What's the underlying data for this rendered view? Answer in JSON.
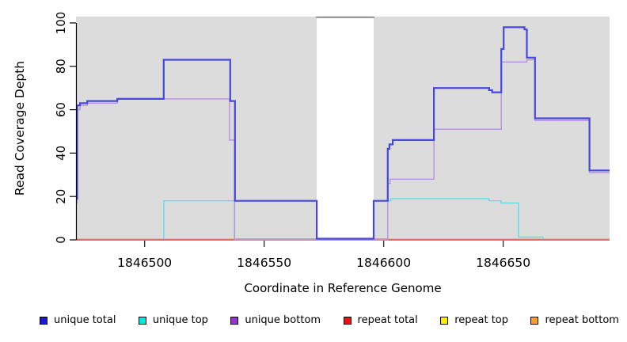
{
  "chart_data": {
    "type": "line",
    "title": "",
    "xlabel": "Coordinate in Reference Genome",
    "ylabel": "Read Coverage Depth",
    "xlim": [
      1846471.3,
      1846694.5
    ],
    "ylim": [
      0,
      102.9
    ],
    "x_ticks": [
      "1846500",
      "1846550",
      "1846600",
      "1846650"
    ],
    "x_tick_values": [
      1846500,
      1846550,
      1846600,
      1846650
    ],
    "y_ticks": [
      "0",
      "20",
      "40",
      "60",
      "80",
      "100"
    ],
    "y_tick_values": [
      0,
      20,
      40,
      60,
      80,
      100
    ],
    "grid": false,
    "plot_bg_color": "#dcdcdc",
    "gap_region": {
      "x1": 1846572,
      "x2": 1846595.8,
      "top_line_color": "#9a9a9a"
    },
    "series": [
      {
        "name": "repeat top",
        "color": "#ffee00",
        "width": 1.4,
        "points": [
          [
            1846471.3,
            0
          ],
          [
            1846694.5,
            0
          ]
        ]
      },
      {
        "name": "unique top",
        "color": "#5ce0e6",
        "width": 1.4,
        "points": [
          [
            1846471.3,
            0
          ],
          [
            1846508,
            18
          ],
          [
            1846537.7,
            0
          ],
          [
            1846595.8,
            18
          ],
          [
            1846603,
            19
          ],
          [
            1846644.1,
            18
          ],
          [
            1846649.1,
            17
          ],
          [
            1846656.4,
            1.3
          ],
          [
            1846666.6,
            0
          ],
          [
            1846694.5,
            0
          ]
        ]
      },
      {
        "name": "repeat bottom",
        "color": "#ff9a28",
        "width": 1.6,
        "points": [
          [
            1846471.3,
            0
          ],
          [
            1846694.5,
            0
          ]
        ]
      },
      {
        "name": "repeat total",
        "color": "#e25572",
        "width": 1.5,
        "points": [
          [
            1846471.3,
            0
          ],
          [
            1846694.5,
            0
          ]
        ]
      },
      {
        "name": "unique bottom",
        "color": "#b98fdf",
        "width": 1.4,
        "points": [
          [
            1846471.3,
            17
          ],
          [
            1846471.8,
            60
          ],
          [
            1846473,
            62
          ],
          [
            1846476,
            63
          ],
          [
            1846488.6,
            65
          ],
          [
            1846535.5,
            46
          ],
          [
            1846537.6,
            0
          ],
          [
            1846601.7,
            26
          ],
          [
            1846602.7,
            28
          ],
          [
            1846621,
            51
          ],
          [
            1846649.2,
            82
          ],
          [
            1846659.9,
            83
          ],
          [
            1846663.3,
            55
          ],
          [
            1846686.1,
            31
          ],
          [
            1846694.5,
            31
          ]
        ]
      },
      {
        "name": "unique total",
        "color": "#4646e0",
        "width": 2.2,
        "points": [
          [
            1846471.3,
            19
          ],
          [
            1846471.8,
            62
          ],
          [
            1846473,
            63
          ],
          [
            1846476,
            64
          ],
          [
            1846488.6,
            65
          ],
          [
            1846508,
            83
          ],
          [
            1846535.8,
            64
          ],
          [
            1846537.8,
            18
          ],
          [
            1846572,
            0
          ],
          [
            1846595.8,
            18
          ],
          [
            1846601.7,
            42
          ],
          [
            1846602.4,
            44
          ],
          [
            1846603.8,
            46
          ],
          [
            1846621,
            70
          ],
          [
            1846644.1,
            69
          ],
          [
            1846645.4,
            68
          ],
          [
            1846649.2,
            88
          ],
          [
            1846650.2,
            98
          ],
          [
            1846658.9,
            97
          ],
          [
            1846659.9,
            84
          ],
          [
            1846663.3,
            56
          ],
          [
            1846686.1,
            32
          ],
          [
            1846694.5,
            32
          ]
        ]
      }
    ],
    "baseline_segments": [
      {
        "name": "repeat-bottom-visible",
        "color": "#ff9a28",
        "x1": 1846508,
        "x2": 1846666.6
      },
      {
        "name": "repeat-total-visible",
        "color": "#e25572",
        "x1": 1846537.9,
        "x2": 1846601.7
      },
      {
        "name": "unique-top-at-zero",
        "color": "#82c982",
        "x1": 1846471.3,
        "x2": 1846508
      },
      {
        "name": "unique-top-at-zero",
        "color": "#82c982",
        "x1": 1846666.6,
        "x2": 1846694.5
      }
    ],
    "legend": {
      "position": "bottom",
      "items": [
        {
          "label": "unique total",
          "color": "#1a1ad6"
        },
        {
          "label": "unique top",
          "color": "#00e5e5"
        },
        {
          "label": "unique bottom",
          "color": "#9932cc"
        },
        {
          "label": "repeat total",
          "color": "#ee1111"
        },
        {
          "label": "repeat top",
          "color": "#ffee00"
        },
        {
          "label": "repeat bottom",
          "color": "#ffa022"
        }
      ]
    }
  }
}
